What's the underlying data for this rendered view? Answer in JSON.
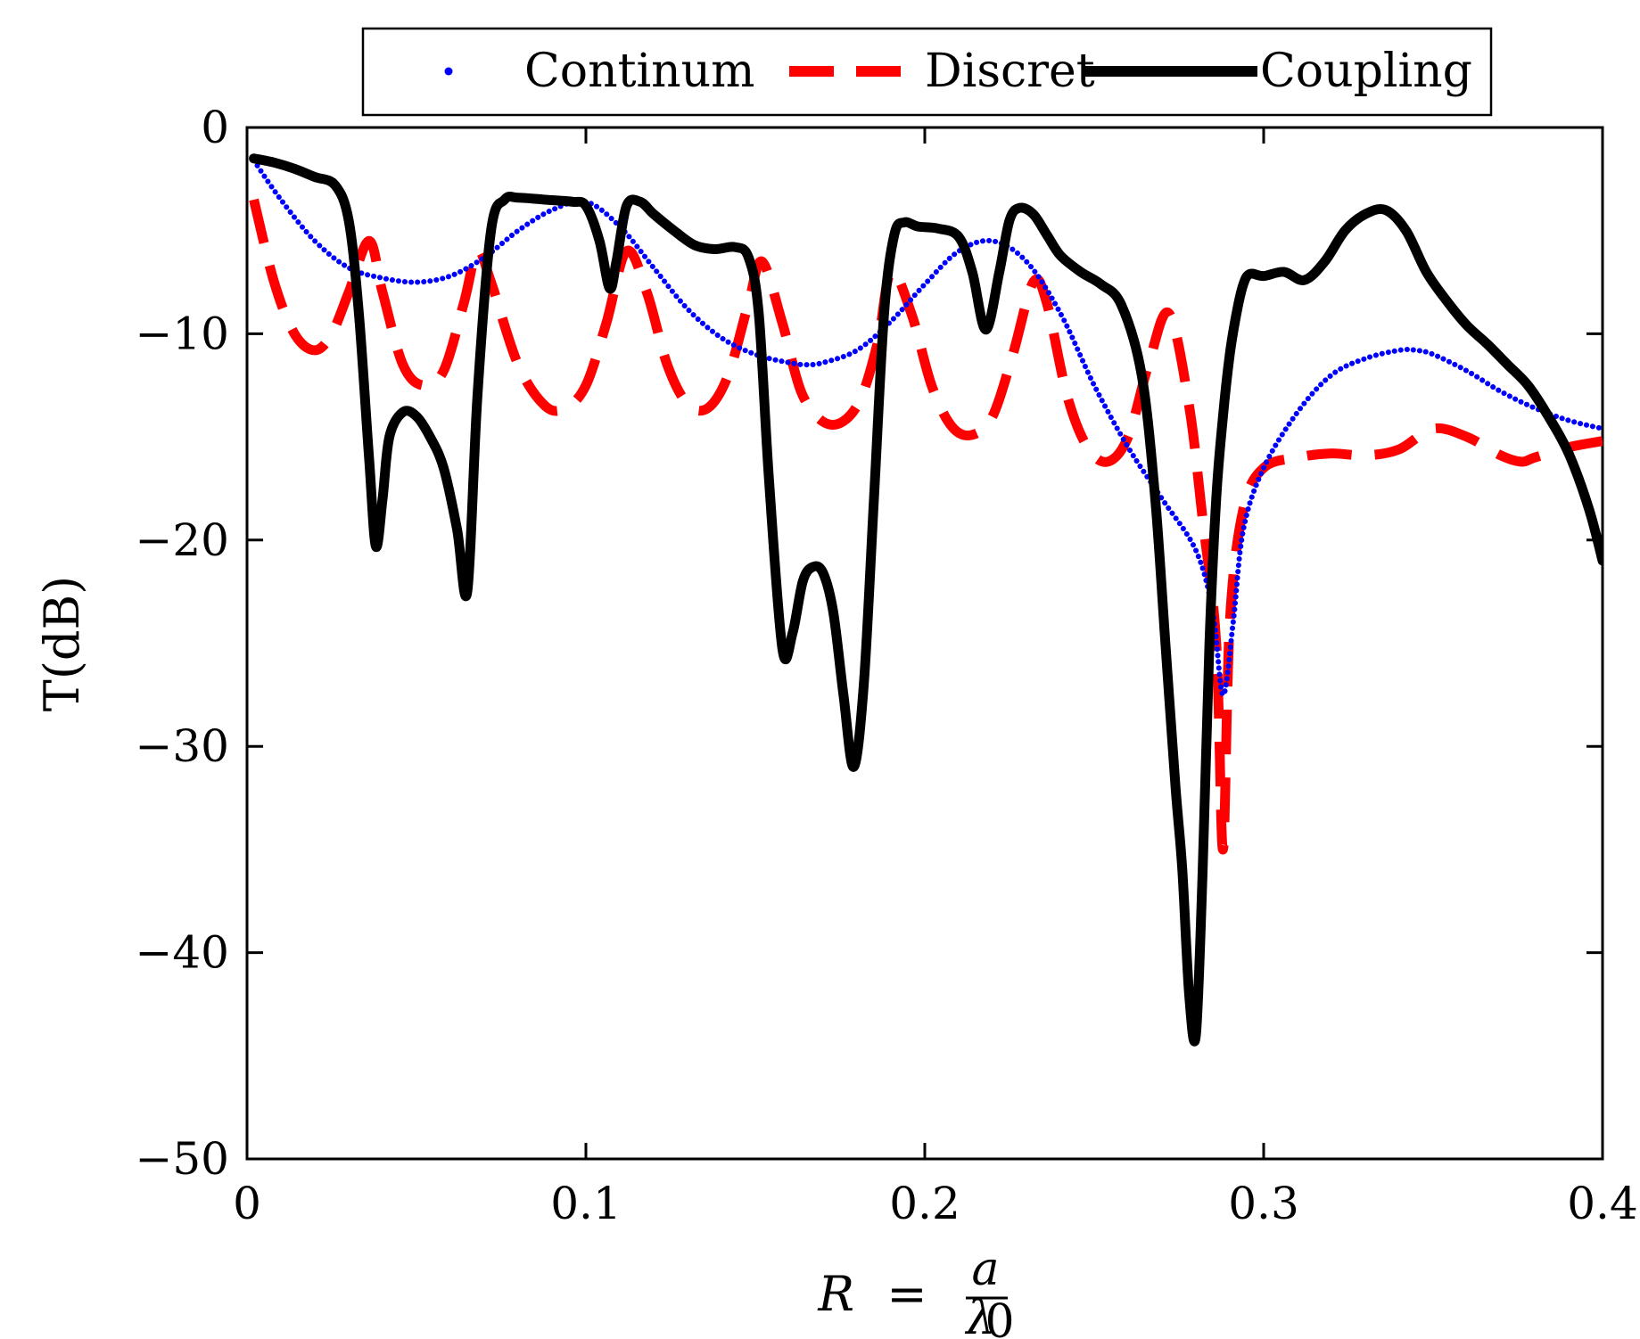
{
  "chart_data": {
    "type": "line",
    "xlabel": "R = a / λ0",
    "xlabel_parts": {
      "lhs": "R",
      "eq": "=",
      "num": "a",
      "den_base": "λ",
      "den_sub": "0"
    },
    "ylabel": "T(dB)",
    "xlim": [
      0,
      0.4
    ],
    "ylim": [
      -50,
      0
    ],
    "xticks": [
      0,
      0.1,
      0.2,
      0.3,
      0.4
    ],
    "xtick_labels": [
      "0",
      "0.1",
      "0.2",
      "0.3",
      "0.4"
    ],
    "yticks": [
      0,
      -10,
      -20,
      -30,
      -40,
      -50
    ],
    "ytick_labels": [
      "0",
      "−10",
      "−20",
      "−30",
      "−40",
      "−50"
    ],
    "grid": false,
    "legend_position": "top-center, outside plot",
    "series": [
      {
        "name": "Continum",
        "style": "dotted",
        "color": "#0000ff",
        "x": [
          0.002,
          0.01,
          0.02,
          0.03,
          0.04,
          0.05,
          0.06,
          0.07,
          0.08,
          0.09,
          0.1,
          0.11,
          0.12,
          0.13,
          0.14,
          0.15,
          0.16,
          0.165,
          0.17,
          0.18,
          0.19,
          0.2,
          0.21,
          0.22,
          0.23,
          0.24,
          0.25,
          0.26,
          0.27,
          0.28,
          0.285,
          0.288,
          0.291,
          0.294,
          0.3,
          0.31,
          0.32,
          0.33,
          0.34,
          0.345,
          0.35,
          0.36,
          0.37,
          0.38,
          0.39,
          0.4
        ],
        "y": [
          -1.6,
          -3.5,
          -5.5,
          -6.8,
          -7.3,
          -7.5,
          -7.2,
          -6.3,
          -5.0,
          -4.0,
          -3.6,
          -4.8,
          -6.8,
          -8.8,
          -10.2,
          -11.0,
          -11.4,
          -11.5,
          -11.4,
          -10.8,
          -9.4,
          -7.6,
          -6.0,
          -5.5,
          -6.5,
          -9.0,
          -12.5,
          -15.5,
          -18.0,
          -20.5,
          -23.5,
          -27.5,
          -24.0,
          -19.5,
          -16.5,
          -13.8,
          -12.0,
          -11.2,
          -10.8,
          -10.8,
          -11.0,
          -11.8,
          -12.8,
          -13.6,
          -14.2,
          -14.6
        ]
      },
      {
        "name": "Discret",
        "style": "dashed",
        "color": "#ff0000",
        "x": [
          0.002,
          0.008,
          0.014,
          0.02,
          0.025,
          0.03,
          0.036,
          0.04,
          0.046,
          0.052,
          0.058,
          0.064,
          0.068,
          0.072,
          0.08,
          0.088,
          0.094,
          0.1,
          0.106,
          0.112,
          0.118,
          0.124,
          0.13,
          0.136,
          0.142,
          0.148,
          0.152,
          0.158,
          0.164,
          0.172,
          0.18,
          0.186,
          0.19,
          0.196,
          0.202,
          0.208,
          0.214,
          0.22,
          0.226,
          0.232,
          0.236,
          0.242,
          0.248,
          0.254,
          0.26,
          0.266,
          0.272,
          0.278,
          0.282,
          0.286,
          0.288,
          0.29,
          0.294,
          0.3,
          0.31,
          0.32,
          0.33,
          0.34,
          0.35,
          0.36,
          0.37,
          0.376,
          0.38,
          0.39,
          0.4
        ],
        "y": [
          -3.5,
          -7.5,
          -10.0,
          -10.8,
          -10.0,
          -8.0,
          -5.5,
          -8.0,
          -11.5,
          -12.5,
          -11.8,
          -8.5,
          -6.0,
          -7.5,
          -11.5,
          -13.5,
          -13.6,
          -12.5,
          -9.5,
          -6.0,
          -8.0,
          -11.5,
          -13.4,
          -13.6,
          -12.0,
          -8.5,
          -6.5,
          -9.5,
          -13.0,
          -14.4,
          -13.5,
          -10.5,
          -7.0,
          -9.0,
          -12.5,
          -14.5,
          -14.9,
          -14.0,
          -11.0,
          -7.5,
          -8.5,
          -13.0,
          -15.5,
          -16.2,
          -15.0,
          -11.5,
          -9.0,
          -13.5,
          -19.0,
          -25.0,
          -35.0,
          -24.0,
          -18.5,
          -16.5,
          -16.0,
          -15.8,
          -15.9,
          -15.6,
          -14.6,
          -15.0,
          -15.9,
          -16.2,
          -16.0,
          -15.5,
          -15.2
        ]
      },
      {
        "name": "Coupling",
        "style": "solid",
        "color": "#000000",
        "x": [
          0.002,
          0.008,
          0.014,
          0.02,
          0.026,
          0.03,
          0.033,
          0.036,
          0.038,
          0.04,
          0.042,
          0.046,
          0.05,
          0.054,
          0.058,
          0.062,
          0.065,
          0.068,
          0.072,
          0.076,
          0.08,
          0.088,
          0.096,
          0.1,
          0.104,
          0.107,
          0.109,
          0.112,
          0.116,
          0.12,
          0.126,
          0.132,
          0.138,
          0.144,
          0.148,
          0.151,
          0.154,
          0.158,
          0.161,
          0.164,
          0.167,
          0.17,
          0.173,
          0.176,
          0.179,
          0.182,
          0.185,
          0.188,
          0.191,
          0.194,
          0.198,
          0.204,
          0.21,
          0.214,
          0.218,
          0.222,
          0.225,
          0.228,
          0.232,
          0.236,
          0.24,
          0.246,
          0.252,
          0.258,
          0.264,
          0.268,
          0.271,
          0.274,
          0.276,
          0.278,
          0.28,
          0.282,
          0.284,
          0.286,
          0.288,
          0.29,
          0.292,
          0.294,
          0.296,
          0.3,
          0.306,
          0.312,
          0.318,
          0.324,
          0.33,
          0.336,
          0.342,
          0.348,
          0.354,
          0.36,
          0.366,
          0.372,
          0.378,
          0.384,
          0.39,
          0.396,
          0.4
        ],
        "y": [
          -1.5,
          -1.7,
          -2.0,
          -2.4,
          -2.8,
          -4.5,
          -9.0,
          -16.0,
          -20.3,
          -18.0,
          -15.0,
          -13.8,
          -14.0,
          -15.0,
          -16.5,
          -19.5,
          -22.5,
          -13.0,
          -5.0,
          -3.5,
          -3.4,
          -3.5,
          -3.6,
          -3.8,
          -5.5,
          -7.8,
          -6.5,
          -3.8,
          -3.6,
          -4.2,
          -5.0,
          -5.7,
          -5.9,
          -5.8,
          -6.3,
          -9.0,
          -17.0,
          -25.3,
          -24.5,
          -22.0,
          -21.3,
          -21.6,
          -23.5,
          -27.5,
          -31.0,
          -27.0,
          -18.0,
          -9.0,
          -5.2,
          -4.6,
          -4.8,
          -4.9,
          -5.3,
          -7.0,
          -9.8,
          -7.0,
          -4.5,
          -3.9,
          -4.2,
          -5.2,
          -6.2,
          -7.0,
          -7.6,
          -8.6,
          -12.0,
          -18.0,
          -25.0,
          -32.0,
          -36.0,
          -42.0,
          -44.0,
          -36.0,
          -25.0,
          -18.0,
          -14.0,
          -11.0,
          -9.0,
          -7.6,
          -7.1,
          -7.2,
          -7.0,
          -7.4,
          -6.5,
          -5.0,
          -4.2,
          -4.0,
          -5.0,
          -7.0,
          -8.4,
          -9.6,
          -10.5,
          -11.5,
          -12.5,
          -14.0,
          -15.8,
          -18.5,
          -21.0
        ]
      }
    ]
  }
}
